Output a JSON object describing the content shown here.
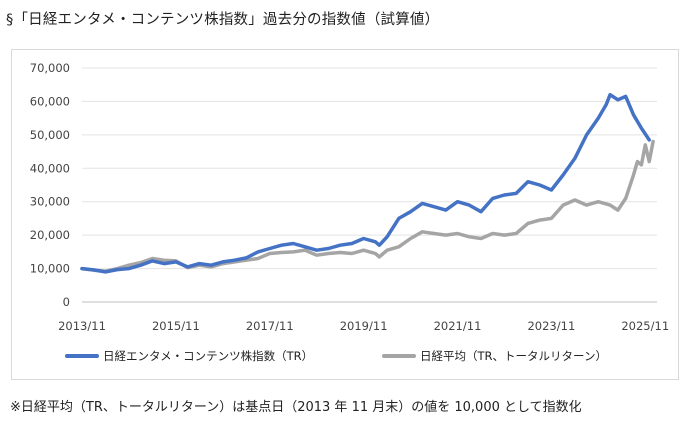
{
  "header": {
    "title": "§「日経エンタメ・コンテンツ株指数」過去分の指数値（試算値）"
  },
  "footnote": "※日経平均（TR、トータルリターン）は基点日（2013 年 11 月末）の値を 10,000 として指数化",
  "chart_data": {
    "type": "line",
    "title": "§「日経エンタメ・コンテンツ株指数」過去分の指数値（試算値）",
    "xlabel": "",
    "ylabel": "",
    "ylim": [
      0,
      70000
    ],
    "yticks": [
      0,
      10000,
      20000,
      30000,
      40000,
      50000,
      60000,
      70000
    ],
    "ytick_labels": [
      "0",
      "10,000",
      "20,000",
      "30,000",
      "40,000",
      "50,000",
      "60,000",
      "70,000"
    ],
    "xlim": [
      "2013/11",
      "2026/02"
    ],
    "xtick_labels": [
      "2013/11",
      "2015/11",
      "2017/11",
      "2019/11",
      "2021/11",
      "2023/11",
      "2025/11"
    ],
    "grid": "horizontal",
    "legend_position": "bottom",
    "series": [
      {
        "name": "日経エンタメ・コンテンツ株指数（TR）",
        "color": "#4472c4",
        "points": [
          [
            "2013/11",
            10000
          ],
          [
            "2014/02",
            9600
          ],
          [
            "2014/05",
            9000
          ],
          [
            "2014/08",
            9700
          ],
          [
            "2014/11",
            10000
          ],
          [
            "2015/02",
            11000
          ],
          [
            "2015/05",
            12300
          ],
          [
            "2015/08",
            11500
          ],
          [
            "2015/11",
            12000
          ],
          [
            "2016/02",
            10500
          ],
          [
            "2016/05",
            11500
          ],
          [
            "2016/08",
            11000
          ],
          [
            "2016/11",
            12000
          ],
          [
            "2017/02",
            12500
          ],
          [
            "2017/05",
            13200
          ],
          [
            "2017/08",
            15000
          ],
          [
            "2017/11",
            16000
          ],
          [
            "2018/02",
            17000
          ],
          [
            "2018/05",
            17500
          ],
          [
            "2018/08",
            16500
          ],
          [
            "2018/11",
            15500
          ],
          [
            "2019/02",
            16000
          ],
          [
            "2019/05",
            17000
          ],
          [
            "2019/08",
            17500
          ],
          [
            "2019/11",
            19000
          ],
          [
            "2020/02",
            18000
          ],
          [
            "2020/03",
            17000
          ],
          [
            "2020/05",
            19500
          ],
          [
            "2020/08",
            25000
          ],
          [
            "2020/11",
            27000
          ],
          [
            "2021/02",
            29500
          ],
          [
            "2021/05",
            28500
          ],
          [
            "2021/08",
            27500
          ],
          [
            "2021/11",
            30000
          ],
          [
            "2022/02",
            29000
          ],
          [
            "2022/05",
            27000
          ],
          [
            "2022/08",
            31000
          ],
          [
            "2022/11",
            32000
          ],
          [
            "2023/02",
            32500
          ],
          [
            "2023/05",
            36000
          ],
          [
            "2023/08",
            35000
          ],
          [
            "2023/11",
            33500
          ],
          [
            "2024/02",
            38000
          ],
          [
            "2024/05",
            43000
          ],
          [
            "2024/08",
            50000
          ],
          [
            "2024/11",
            55000
          ],
          [
            "2025/01",
            59000
          ],
          [
            "2025/02",
            62000
          ],
          [
            "2025/04",
            60500
          ],
          [
            "2025/06",
            61500
          ],
          [
            "2025/08",
            56000
          ],
          [
            "2025/10",
            52000
          ],
          [
            "2025/12",
            48500
          ]
        ]
      },
      {
        "name": "日経平均（TR、トータルリターン）",
        "color": "#a5a5a5",
        "points": [
          [
            "2013/11",
            10000
          ],
          [
            "2014/02",
            9500
          ],
          [
            "2014/05",
            9200
          ],
          [
            "2014/08",
            10000
          ],
          [
            "2014/11",
            11000
          ],
          [
            "2015/02",
            11800
          ],
          [
            "2015/05",
            13000
          ],
          [
            "2015/08",
            12500
          ],
          [
            "2015/11",
            12300
          ],
          [
            "2016/02",
            10300
          ],
          [
            "2016/05",
            11000
          ],
          [
            "2016/08",
            10500
          ],
          [
            "2016/11",
            11500
          ],
          [
            "2017/02",
            12000
          ],
          [
            "2017/05",
            12500
          ],
          [
            "2017/08",
            13000
          ],
          [
            "2017/11",
            14500
          ],
          [
            "2018/02",
            14800
          ],
          [
            "2018/05",
            15000
          ],
          [
            "2018/08",
            15500
          ],
          [
            "2018/11",
            14000
          ],
          [
            "2019/02",
            14500
          ],
          [
            "2019/05",
            14800
          ],
          [
            "2019/08",
            14500
          ],
          [
            "2019/11",
            15500
          ],
          [
            "2020/02",
            14500
          ],
          [
            "2020/03",
            13500
          ],
          [
            "2020/05",
            15500
          ],
          [
            "2020/08",
            16500
          ],
          [
            "2020/11",
            19000
          ],
          [
            "2021/02",
            21000
          ],
          [
            "2021/05",
            20500
          ],
          [
            "2021/08",
            20000
          ],
          [
            "2021/11",
            20500
          ],
          [
            "2022/02",
            19500
          ],
          [
            "2022/05",
            19000
          ],
          [
            "2022/08",
            20500
          ],
          [
            "2022/11",
            20000
          ],
          [
            "2023/02",
            20500
          ],
          [
            "2023/05",
            23500
          ],
          [
            "2023/08",
            24500
          ],
          [
            "2023/11",
            25000
          ],
          [
            "2024/02",
            29000
          ],
          [
            "2024/05",
            30500
          ],
          [
            "2024/08",
            29000
          ],
          [
            "2024/11",
            30000
          ],
          [
            "2025/02",
            29000
          ],
          [
            "2025/04",
            27500
          ],
          [
            "2025/06",
            31000
          ],
          [
            "2025/08",
            38000
          ],
          [
            "2025/09",
            42000
          ],
          [
            "2025/10",
            41000
          ],
          [
            "2025/11",
            47000
          ],
          [
            "2025/12",
            42000
          ],
          [
            "2026/01",
            48000
          ]
        ]
      }
    ]
  }
}
